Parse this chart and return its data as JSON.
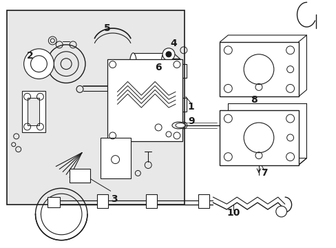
{
  "background_color": "#ffffff",
  "line_color": "#1a1a1a",
  "box_bg": "#e8e8e8",
  "fig_w": 4.89,
  "fig_h": 3.6,
  "dpi": 100
}
